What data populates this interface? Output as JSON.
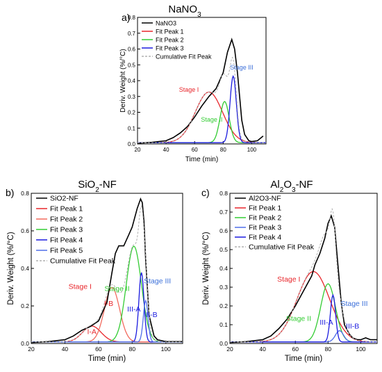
{
  "panel_a": {
    "label": "a)",
    "title": "NaNO",
    "title_sub": "3"
  },
  "panel_b": {
    "label": "b)",
    "title": "SiO",
    "title_sub": "2",
    "title_suffix": "-NF"
  },
  "panel_c": {
    "label": "c)",
    "title": "Al",
    "title_sub": "2",
    "title_mid": "O",
    "title_sub2": "3",
    "title_suffix": "-NF"
  },
  "colors": {
    "data": "#000000",
    "peak_red": "#e8262b",
    "peak_salmon": "#f26a5e",
    "peak_green": "#33cc33",
    "peak_blue": "#1a1adf",
    "peak_lightblue": "#4f6de8",
    "cumulative": "#b0b0b0",
    "stage3_text": "#3b6fd9"
  },
  "chart_data": [
    {
      "panel": "a",
      "type": "line",
      "title": "NaNO3",
      "xlabel": "Time (min)",
      "ylabel": "Deriv. Weight (%/°C)",
      "xlim": [
        20,
        110
      ],
      "ylim": [
        0,
        0.8
      ],
      "xticks": [
        20,
        40,
        60,
        80,
        100
      ],
      "yticks": [
        0.0,
        0.1,
        0.2,
        0.3,
        0.4,
        0.5,
        0.6,
        0.7,
        0.8
      ],
      "legend_position": "top-left",
      "legend": [
        "NaNO3",
        "Fit Peak 1",
        "Fit Peak 2",
        "Fit Peak 3",
        "Cumulative Fit Peak"
      ],
      "series": [
        {
          "name": "NaNO3",
          "x": [
            20,
            30,
            40,
            45,
            50,
            55,
            60,
            65,
            70,
            75,
            80,
            83,
            86,
            88,
            90,
            93,
            95,
            98,
            100,
            104,
            108
          ],
          "y": [
            0.005,
            0.01,
            0.02,
            0.04,
            0.07,
            0.11,
            0.17,
            0.24,
            0.3,
            0.35,
            0.45,
            0.58,
            0.66,
            0.6,
            0.45,
            0.15,
            0.06,
            0.02,
            0.015,
            0.02,
            0.05
          ]
        },
        {
          "name": "Fit Peak 1",
          "center": 70,
          "height": 0.32,
          "width": 9.5
        },
        {
          "name": "Fit Peak 2",
          "center": 81,
          "height": 0.26,
          "width": 3.2
        },
        {
          "name": "Fit Peak 3",
          "center": 87,
          "height": 0.42,
          "width": 2.2
        },
        {
          "name": "Cumulative Fit Peak",
          "sum_of_peaks": true
        }
      ],
      "annotations": [
        {
          "text": "Stage I",
          "x": 56,
          "y": 0.33,
          "color": "peak_red"
        },
        {
          "text": "Stage II",
          "x": 72,
          "y": 0.14,
          "color": "peak_green"
        },
        {
          "text": "Stage III",
          "x": 93,
          "y": 0.47,
          "color": "stage3_text"
        }
      ]
    },
    {
      "panel": "b",
      "type": "line",
      "title": "SiO2-NF",
      "xlabel": "Time (min)",
      "ylabel": "Deriv. Weight (%/°C)",
      "xlim": [
        20,
        110
      ],
      "ylim": [
        0,
        0.8
      ],
      "xticks": [
        20,
        40,
        60,
        80,
        100
      ],
      "yticks": [
        0.0,
        0.2,
        0.4,
        0.6,
        0.8
      ],
      "legend_position": "top-left",
      "legend": [
        "SiO2-NF",
        "Fit Peak 1",
        "Fit Peak 2",
        "Fit Peak 3",
        "Fit Peak 4",
        "Fit Peak 5",
        "Cumulative Fit Peak"
      ],
      "series": [
        {
          "name": "SiO2-NF",
          "x": [
            20,
            30,
            40,
            45,
            50,
            55,
            60,
            65,
            68,
            70,
            72,
            75,
            78,
            80,
            83,
            85,
            86,
            87,
            88,
            90,
            93,
            95,
            100,
            105,
            110
          ],
          "y": [
            0.005,
            0.01,
            0.02,
            0.04,
            0.07,
            0.09,
            0.12,
            0.22,
            0.38,
            0.48,
            0.52,
            0.52,
            0.58,
            0.62,
            0.72,
            0.77,
            0.75,
            0.65,
            0.45,
            0.15,
            0.04,
            0.02,
            0.01,
            0.01,
            0.01
          ]
        },
        {
          "name": "Fit Peak 1",
          "center": 56,
          "height": 0.085,
          "width": 5.5
        },
        {
          "name": "Fit Peak 2",
          "center": 68,
          "height": 0.29,
          "width": 4.5
        },
        {
          "name": "Fit Peak 3",
          "center": 81,
          "height": 0.51,
          "width": 4.5
        },
        {
          "name": "Fit Peak 4",
          "center": 85.5,
          "height": 0.37,
          "width": 1.5
        },
        {
          "name": "Fit Peak 5",
          "center": 88,
          "height": 0.22,
          "width": 1.4
        },
        {
          "name": "Cumulative Fit Peak",
          "sum_of_peaks": true
        }
      ],
      "annotations": [
        {
          "text": "Stage I",
          "x": 49,
          "y": 0.29,
          "color": "peak_red"
        },
        {
          "text": "Stage II",
          "x": 71,
          "y": 0.28,
          "color": "peak_green"
        },
        {
          "text": "Stage III",
          "x": 95,
          "y": 0.32,
          "color": "stage3_text"
        },
        {
          "text": "I-A",
          "x": 56,
          "y": 0.05,
          "color": "peak_red"
        },
        {
          "text": "I-B",
          "x": 66,
          "y": 0.2,
          "color": "peak_red"
        },
        {
          "text": "III-A",
          "x": 81,
          "y": 0.17,
          "color": "peak_blue"
        },
        {
          "text": "III-B",
          "x": 91,
          "y": 0.14,
          "color": "peak_blue"
        }
      ]
    },
    {
      "panel": "c",
      "type": "line",
      "title": "Al2O3-NF",
      "xlabel": "Time (min)",
      "ylabel": "Deriv. Weight (%/°C)",
      "xlim": [
        20,
        110
      ],
      "ylim": [
        0,
        0.8
      ],
      "xticks": [
        20,
        40,
        60,
        80,
        100
      ],
      "yticks": [
        0.0,
        0.1,
        0.2,
        0.3,
        0.4,
        0.5,
        0.6,
        0.7,
        0.8
      ],
      "legend_position": "top-left",
      "legend": [
        "Al2O3-NF",
        "Fit Peak 1",
        "Fit Peak 2",
        "Fit Peak 3",
        "Fit Peak 4",
        "Cumulative Fit Peak"
      ],
      "series": [
        {
          "name": "Al2O3-NF",
          "x": [
            20,
            30,
            40,
            45,
            50,
            55,
            60,
            65,
            70,
            72,
            75,
            78,
            80,
            82,
            84,
            86,
            88,
            90,
            93,
            95,
            98,
            100,
            103,
            106,
            110
          ],
          "y": [
            0.005,
            0.01,
            0.02,
            0.04,
            0.08,
            0.13,
            0.2,
            0.28,
            0.36,
            0.42,
            0.48,
            0.56,
            0.64,
            0.68,
            0.62,
            0.42,
            0.22,
            0.1,
            0.05,
            0.03,
            0.02,
            0.02,
            0.03,
            0.02,
            0.02
          ]
        },
        {
          "name": "Fit Peak 1",
          "center": 71,
          "height": 0.375,
          "width": 10
        },
        {
          "name": "Fit Peak 2",
          "center": 80,
          "height": 0.31,
          "width": 4.5
        },
        {
          "name": "Fit Peak 3",
          "center": 87,
          "height": 0.06,
          "width": 2.5
        },
        {
          "name": "Fit Peak 4",
          "center": 83,
          "height": 0.25,
          "width": 1.6
        },
        {
          "name": "Cumulative Fit Peak",
          "sum_of_peaks": true
        }
      ],
      "annotations": [
        {
          "text": "Stage I",
          "x": 56,
          "y": 0.33,
          "color": "peak_red"
        },
        {
          "text": "Stage II",
          "x": 62,
          "y": 0.12,
          "color": "peak_green"
        },
        {
          "text": "Stage III",
          "x": 96,
          "y": 0.2,
          "color": "stage3_text"
        },
        {
          "text": "III-A",
          "x": 79,
          "y": 0.1,
          "color": "peak_blue"
        },
        {
          "text": "III-B",
          "x": 95,
          "y": 0.08,
          "color": "peak_blue"
        }
      ]
    }
  ]
}
